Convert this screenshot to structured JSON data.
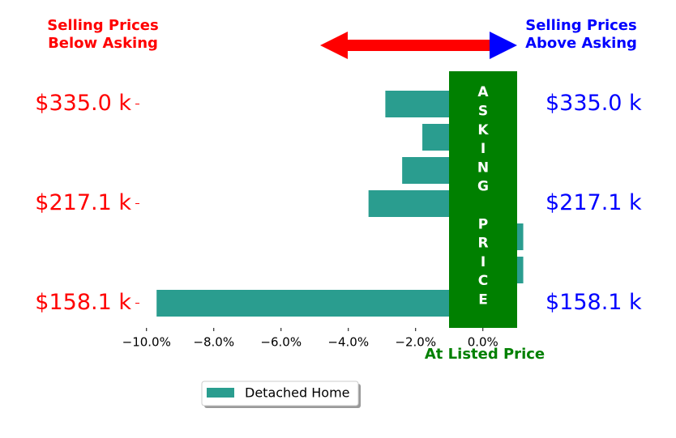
{
  "chart_data": {
    "type": "barh",
    "annotation_left": [
      "Selling Prices",
      "Below Asking"
    ],
    "annotation_right": [
      "Selling Prices",
      "Above Asking"
    ],
    "band_label": "ASKING PRICE",
    "xlabel": "At Listed Price",
    "categories": [
      "$335.0 k",
      null,
      null,
      "$217.1 k",
      null,
      null,
      "$158.1 k"
    ],
    "series": [
      {
        "name": "Detached Home",
        "color": "#2a9d8f",
        "values": [
          -2.9,
          -1.8,
          -2.4,
          -3.4,
          1.2,
          1.2,
          -9.7
        ]
      }
    ],
    "xlim": [
      -10.5,
      1.5
    ],
    "xticks": [
      {
        "value": -10,
        "label": "−10.0%"
      },
      {
        "value": -8,
        "label": "−8.0%"
      },
      {
        "value": -6,
        "label": "−6.0%"
      },
      {
        "value": -4,
        "label": "−4.0%"
      },
      {
        "value": -2,
        "label": "−2.0%"
      },
      {
        "value": 0,
        "label": "0.0%"
      }
    ],
    "grid": false
  }
}
